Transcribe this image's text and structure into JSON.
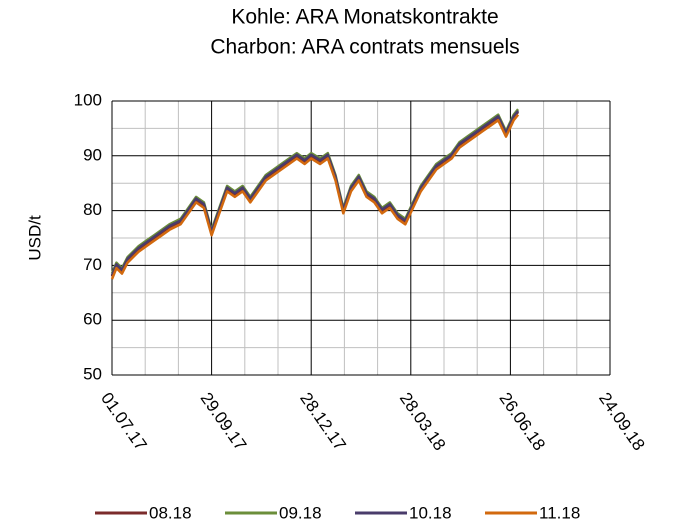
{
  "chart_data": {
    "type": "line",
    "title": "Kohle: ARA Monatskontrakte",
    "subtitle": "Charbon: ARA contrats mensuels",
    "y_label": "USD/t",
    "x": [
      "2017-07-01",
      "2017-07-05",
      "2017-07-10",
      "2017-07-15",
      "2017-07-20",
      "2017-07-25",
      "2017-08-01",
      "2017-08-08",
      "2017-08-15",
      "2017-08-22",
      "2017-09-01",
      "2017-09-08",
      "2017-09-15",
      "2017-09-22",
      "2017-09-29",
      "2017-10-06",
      "2017-10-13",
      "2017-10-20",
      "2017-10-27",
      "2017-11-03",
      "2017-11-10",
      "2017-11-17",
      "2017-11-24",
      "2017-12-01",
      "2017-12-08",
      "2017-12-15",
      "2017-12-22",
      "2017-12-28",
      "2018-01-05",
      "2018-01-12",
      "2018-01-19",
      "2018-01-26",
      "2018-02-02",
      "2018-02-09",
      "2018-02-16",
      "2018-02-23",
      "2018-03-02",
      "2018-03-09",
      "2018-03-16",
      "2018-03-23",
      "2018-03-30",
      "2018-04-06",
      "2018-04-13",
      "2018-04-20",
      "2018-04-27",
      "2018-05-04",
      "2018-05-11",
      "2018-05-18",
      "2018-05-25",
      "2018-06-01",
      "2018-06-08",
      "2018-06-15",
      "2018-06-22",
      "2018-06-29",
      "2018-07-03"
    ],
    "series": [
      {
        "name": "08.18",
        "color": "#7b2b2b",
        "values": [
          68,
          70,
          69,
          71,
          72,
          73,
          74,
          75,
          76,
          77,
          78,
          80,
          82,
          81,
          76,
          80,
          84,
          83,
          84,
          82,
          84,
          86,
          87,
          88,
          89,
          90,
          89,
          90,
          89,
          90,
          86,
          80,
          84,
          86,
          83,
          82,
          80,
          81,
          79,
          78,
          81,
          84,
          86,
          88,
          89,
          90,
          92,
          93,
          94,
          95,
          96,
          97,
          94,
          97,
          98
        ]
      },
      {
        "name": "09.18",
        "color": "#6b8e3a",
        "values": [
          68.5,
          70.5,
          69.5,
          71.5,
          72.5,
          73.5,
          74.5,
          75.5,
          76.5,
          77.5,
          78.5,
          80.5,
          82.5,
          81.5,
          76.5,
          80.5,
          84.5,
          83.5,
          84.5,
          82.5,
          84.5,
          86.5,
          87.5,
          88.5,
          89.5,
          90.5,
          89.5,
          90.5,
          89.5,
          90.5,
          86.5,
          80.5,
          84.5,
          86.5,
          83.5,
          82.5,
          80.5,
          81.5,
          79.5,
          78.5,
          81.5,
          84.5,
          86.5,
          88.5,
          89.5,
          90.5,
          92.5,
          93.5,
          94.5,
          95.5,
          96.5,
          97.5,
          94.5,
          97.5,
          98.5
        ]
      },
      {
        "name": "10.18",
        "color": "#4a3c6b",
        "values": [
          68.2,
          70.2,
          69.2,
          71.2,
          72.2,
          73.2,
          74.2,
          75.2,
          76.2,
          77.2,
          78.2,
          80.2,
          82.2,
          81.2,
          76.2,
          80.2,
          84.2,
          83.2,
          84.2,
          82.2,
          84.2,
          86.2,
          87.2,
          88.2,
          89.2,
          90.2,
          89.2,
          90.2,
          89.2,
          90.2,
          86.2,
          80.2,
          84.2,
          86.2,
          83.2,
          82.2,
          80.2,
          81.2,
          79.2,
          78.2,
          81.2,
          84.2,
          86.2,
          88.2,
          89.2,
          90.2,
          92.2,
          93.2,
          94.2,
          95.2,
          96.2,
          97.2,
          94.2,
          97.2,
          98.2
        ]
      },
      {
        "name": "11.18",
        "color": "#d2690e",
        "values": [
          67.5,
          69.5,
          68.5,
          70.5,
          71.5,
          72.5,
          73.5,
          74.5,
          75.5,
          76.5,
          77.5,
          79.5,
          81.5,
          80.5,
          75.5,
          79.5,
          83.5,
          82.5,
          83.5,
          81.5,
          83.5,
          85.5,
          86.5,
          87.5,
          88.5,
          89.5,
          88.5,
          89.5,
          88.5,
          89.5,
          85.5,
          79.5,
          83.5,
          85.5,
          82.5,
          81.5,
          79.5,
          80.5,
          78.5,
          77.5,
          80.5,
          83.5,
          85.5,
          87.5,
          88.5,
          89.5,
          91.5,
          92.5,
          93.5,
          94.5,
          95.5,
          96.5,
          93.5,
          96.5,
          97.5
        ]
      }
    ],
    "xlim": [
      "2017-07-01",
      "2018-09-24"
    ],
    "xticks": [
      {
        "value": "2017-07-01",
        "label": "01.07.17"
      },
      {
        "value": "2017-09-29",
        "label": "29.09.17"
      },
      {
        "value": "2017-12-28",
        "label": "28.12.17"
      },
      {
        "value": "2018-03-28",
        "label": "28.03.18"
      },
      {
        "value": "2018-06-26",
        "label": "26.06.18"
      },
      {
        "value": "2018-09-24",
        "label": "24.09.18"
      }
    ],
    "ylim": [
      50,
      100
    ],
    "yticks": [
      50,
      60,
      70,
      80,
      90,
      100
    ],
    "grid": true,
    "legend": "bottom"
  }
}
